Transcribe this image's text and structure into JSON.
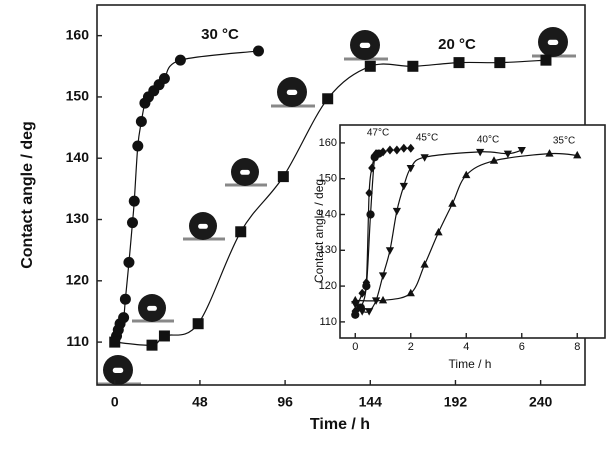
{
  "chart_data": [
    {
      "type": "scatter",
      "xlabel": "Time / h",
      "ylabel": "Contact angle / deg",
      "xlim": [
        -10,
        265
      ],
      "ylim": [
        103,
        165
      ],
      "xticks": [
        0,
        48,
        96,
        144,
        192,
        240
      ],
      "yticks": [
        110,
        120,
        130,
        140,
        150,
        160
      ],
      "series": [
        {
          "name": "30 °C",
          "marker": "circle",
          "color": "#111111",
          "x": [
            1,
            2,
            3,
            5,
            6,
            8,
            10,
            11,
            13,
            15,
            17,
            19,
            22,
            25,
            28,
            37,
            81
          ],
          "values": [
            111,
            112,
            113,
            114,
            117,
            123,
            129.5,
            133,
            142,
            146,
            149,
            150,
            151,
            152,
            153,
            156,
            157.5
          ]
        },
        {
          "name": "20 °C",
          "marker": "square",
          "color": "#111111",
          "x": [
            0,
            21,
            28,
            47,
            71,
            95,
            120,
            144,
            168,
            194,
            217,
            243
          ],
          "values": [
            110,
            109.5,
            111,
            113,
            128,
            137,
            149.7,
            155,
            155,
            155.6,
            155.6,
            156
          ]
        }
      ]
    },
    {
      "type": "scatter",
      "xlabel": "Time / h",
      "ylabel": "Contact angle / deg",
      "xlim": [
        -0.55,
        9.0
      ],
      "ylim": [
        105.5,
        165
      ],
      "xticks": [
        0,
        2,
        4,
        6,
        8
      ],
      "yticks": [
        110,
        120,
        130,
        140,
        150,
        160
      ],
      "series": [
        {
          "name": "47°C",
          "marker": "diamond",
          "color": "#111111",
          "x": [
            0,
            0.25,
            0.4,
            0.5,
            0.6,
            0.75,
            1.0,
            1.25,
            1.5,
            1.75,
            2.0
          ],
          "values": [
            113,
            118,
            121,
            146,
            153,
            157,
            157.5,
            158,
            158,
            158.5,
            158.5
          ]
        },
        {
          "name": "45°C",
          "marker": "circle",
          "color": "#111111",
          "x": [
            0,
            0.2,
            0.4,
            0.55,
            0.7,
            0.85
          ],
          "values": [
            112,
            114,
            120,
            140,
            156,
            157
          ]
        },
        {
          "name": "40°C",
          "marker": "tri-down",
          "color": "#111111",
          "x": [
            0,
            0.25,
            0.5,
            0.75,
            1.0,
            1.25,
            1.5,
            1.75,
            2.0,
            2.5,
            4.5,
            5.5,
            6.0
          ],
          "values": [
            115,
            113,
            113,
            116,
            123,
            130,
            141,
            148,
            153,
            156,
            157.5,
            157,
            158
          ]
        },
        {
          "name": "35°C",
          "marker": "tri-up",
          "color": "#111111",
          "x": [
            0,
            1.0,
            2.0,
            2.5,
            3.0,
            3.5,
            4.0,
            5.0,
            7.0,
            8.0
          ],
          "values": [
            116,
            116,
            118,
            126,
            135,
            143,
            151,
            155,
            157,
            156.5
          ]
        }
      ]
    }
  ]
}
